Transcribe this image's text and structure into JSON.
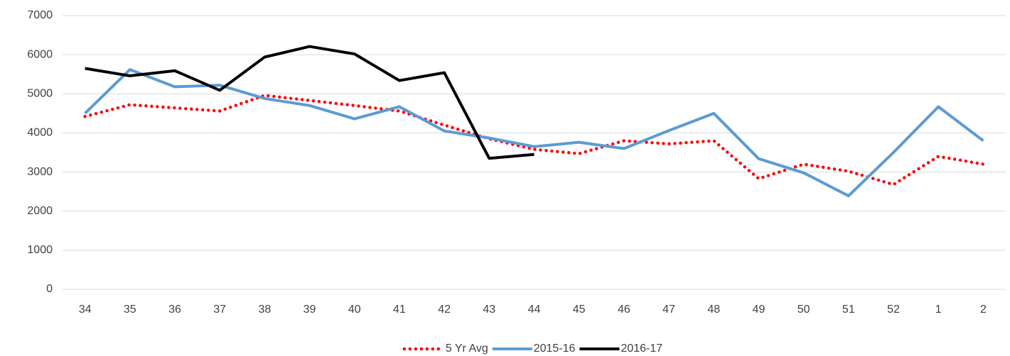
{
  "chart_data": {
    "type": "line",
    "categories": [
      "34",
      "35",
      "36",
      "37",
      "38",
      "39",
      "40",
      "41",
      "42",
      "43",
      "44",
      "45",
      "46",
      "47",
      "48",
      "49",
      "50",
      "51",
      "52",
      "1",
      "2"
    ],
    "series": [
      {
        "name": "5 Yr Avg",
        "color": "#ff0000",
        "style": "dotted",
        "values": [
          4420,
          4720,
          4640,
          4560,
          4960,
          4830,
          4700,
          4560,
          4200,
          3850,
          3580,
          3470,
          3800,
          3720,
          3800,
          2830,
          3200,
          3020,
          2680,
          3400,
          3200
        ]
      },
      {
        "name": "2015-16",
        "color": "#5b9bd5",
        "style": "solid",
        "values": [
          4500,
          5620,
          5180,
          5220,
          4880,
          4700,
          4360,
          4670,
          4050,
          3870,
          3650,
          3760,
          3600,
          4060,
          4500,
          3340,
          2980,
          2390,
          3500,
          4670,
          3800
        ]
      },
      {
        "name": "2016-17",
        "color": "#000000",
        "style": "solid",
        "values": [
          5650,
          5460,
          5590,
          5090,
          5940,
          6210,
          6020,
          5340,
          5540,
          3350,
          3450,
          null,
          null,
          null,
          null,
          null,
          null,
          null,
          null,
          null,
          null
        ]
      }
    ],
    "ylim": [
      0,
      7000
    ],
    "yticks": [
      0,
      1000,
      2000,
      3000,
      4000,
      5000,
      6000,
      7000
    ],
    "grid": true,
    "legend": "bottom"
  }
}
